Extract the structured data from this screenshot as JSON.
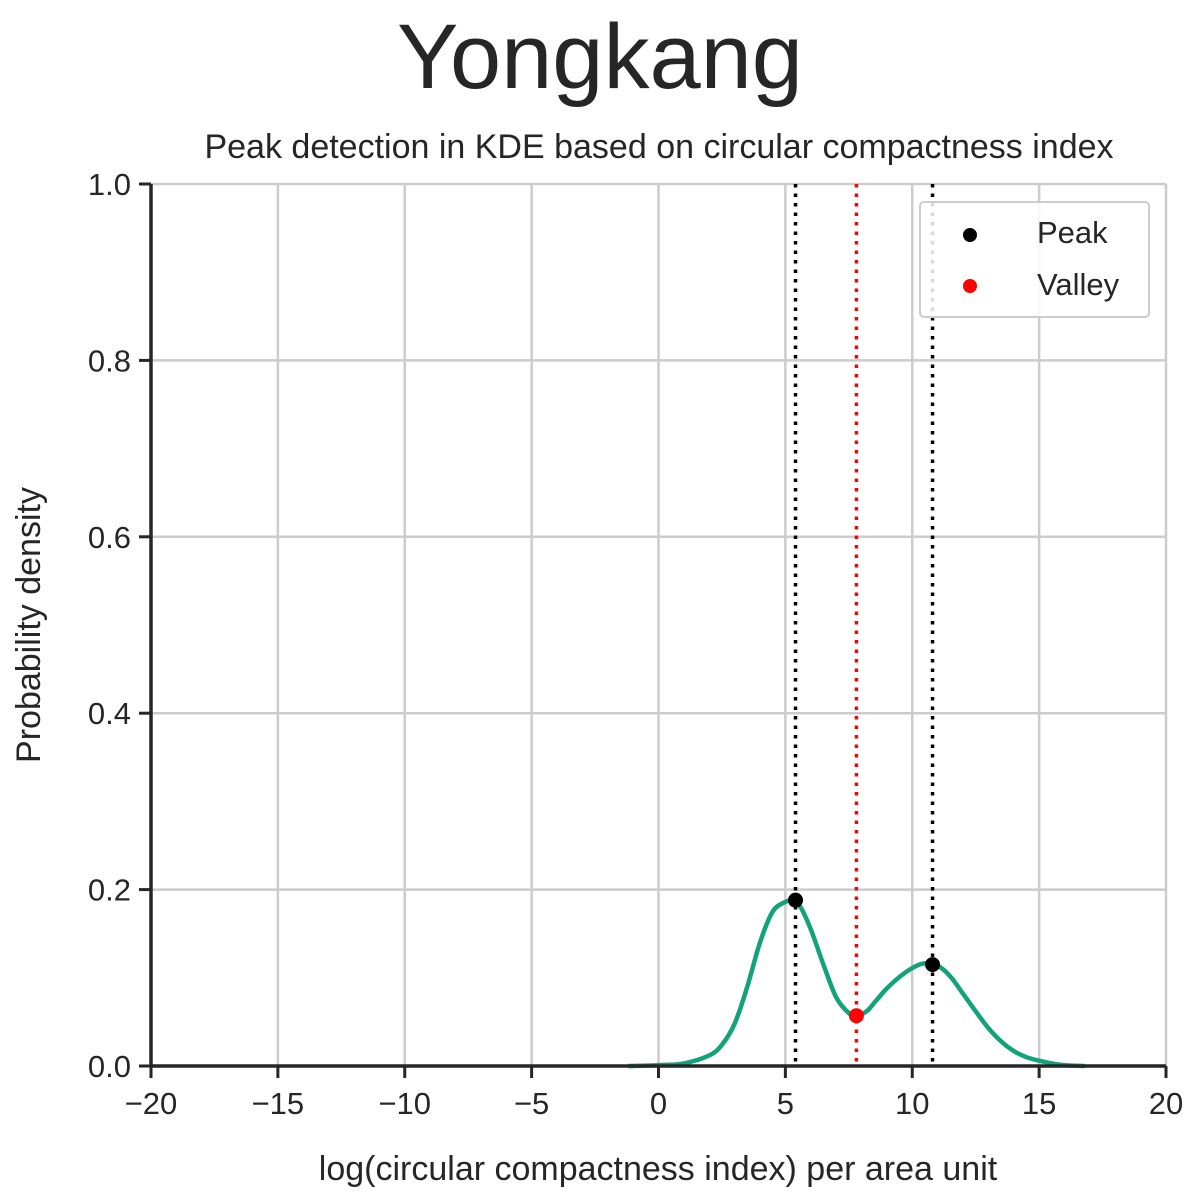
{
  "chart_data": {
    "type": "line",
    "suptitle": "Yongkang",
    "title": "Peak detection in KDE based on circular compactness index",
    "xlabel": "log(circular compactness index) per area unit",
    "ylabel": "Probability density",
    "xlim": [
      -20,
      20
    ],
    "ylim": [
      0,
      1.0
    ],
    "xticks": [
      -20,
      -15,
      -10,
      -5,
      0,
      5,
      10,
      15,
      20
    ],
    "xtick_labels": [
      "−20",
      "−15",
      "−10",
      "−5",
      "0",
      "5",
      "10",
      "15",
      "20"
    ],
    "yticks": [
      0.0,
      0.2,
      0.4,
      0.6,
      0.8,
      1.0
    ],
    "ytick_labels": [
      "0.0",
      "0.2",
      "0.4",
      "0.6",
      "0.8",
      "1.0"
    ],
    "grid": true,
    "legend_position": "top-right",
    "line_color": "#13a37a",
    "kde_curve": {
      "x": [
        -1.2,
        0,
        1,
        2,
        2.5,
        3,
        3.5,
        4,
        4.5,
        5,
        5.3,
        5.6,
        6,
        6.5,
        7,
        7.5,
        7.8,
        8.2,
        8.6,
        9,
        9.5,
        10,
        10.4,
        10.8,
        11.2,
        11.6,
        12,
        12.5,
        13,
        13.5,
        14,
        14.5,
        15,
        15.5,
        16,
        16.8
      ],
      "y": [
        0.0,
        0.001,
        0.003,
        0.012,
        0.024,
        0.048,
        0.09,
        0.14,
        0.175,
        0.186,
        0.187,
        0.18,
        0.155,
        0.115,
        0.078,
        0.06,
        0.057,
        0.062,
        0.075,
        0.088,
        0.101,
        0.111,
        0.116,
        0.116,
        0.11,
        0.098,
        0.082,
        0.062,
        0.043,
        0.028,
        0.017,
        0.01,
        0.006,
        0.003,
        0.001,
        0.0
      ]
    },
    "peaks": [
      {
        "x": 5.4,
        "y": 0.188
      },
      {
        "x": 10.8,
        "y": 0.115
      }
    ],
    "valleys": [
      {
        "x": 7.8,
        "y": 0.057
      }
    ],
    "legend": [
      {
        "label": "Peak",
        "color": "#000000"
      },
      {
        "label": "Valley",
        "color": "#ff0000"
      }
    ]
  }
}
